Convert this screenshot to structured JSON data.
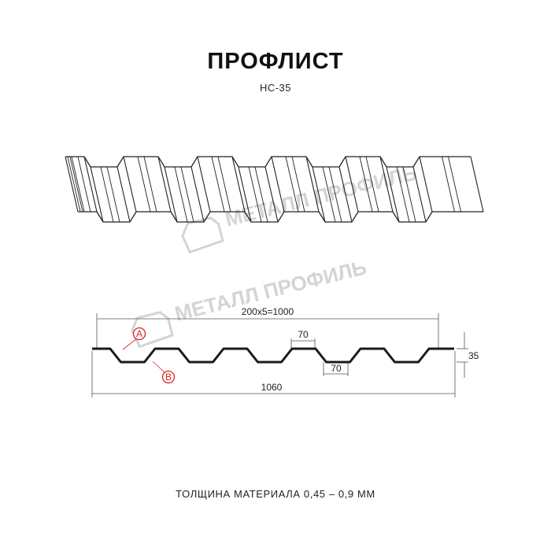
{
  "header": {
    "title": "ПРОФЛИСТ",
    "model": "НС-35"
  },
  "watermark": {
    "text": "МЕТАЛЛ ПРОФИЛЬ"
  },
  "section": {
    "dim_pitch": "200x5=1000",
    "dim_top_width": "70",
    "dim_bottom_width": "70",
    "dim_height": "35",
    "dim_total_width": "1060",
    "label_a": "A",
    "label_b": "B"
  },
  "footer": {
    "thickness": "ТОЛЩИНА МАТЕРИАЛА 0,45 – 0,9 ММ"
  },
  "colors": {
    "profile": "#1a1a1a",
    "callout": "#e02020",
    "watermark": "#d4d4d4"
  }
}
